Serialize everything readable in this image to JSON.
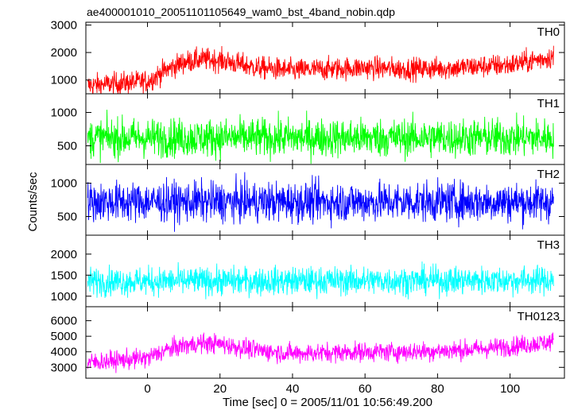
{
  "chart_data": {
    "type": "line",
    "title": "ae400001010_20051101105649_wam0_bst_4band_nobin.qdp",
    "xlabel": "Time [sec] 0 = 2005/11/01 10:56:49.200",
    "ylabel": "Counts/sec",
    "xlim": [
      -17,
      115
    ],
    "x_range": [
      -16.5,
      112
    ],
    "x_ticks": [
      0,
      20,
      40,
      60,
      80,
      100
    ],
    "grid": false,
    "panels": [
      {
        "name": "TH0",
        "color": "#ff0000",
        "ylim": [
          500,
          3100
        ],
        "y_ticks": [
          1000,
          2000,
          3000
        ],
        "noise_amplitude": 370,
        "trend": [
          [
            -16.5,
            800
          ],
          [
            0,
            950
          ],
          [
            5,
            1350
          ],
          [
            10,
            1650
          ],
          [
            15,
            1750
          ],
          [
            20,
            1720
          ],
          [
            30,
            1450
          ],
          [
            40,
            1350
          ],
          [
            50,
            1400
          ],
          [
            60,
            1450
          ],
          [
            70,
            1400
          ],
          [
            80,
            1420
          ],
          [
            90,
            1480
          ],
          [
            100,
            1550
          ],
          [
            112,
            1850
          ]
        ]
      },
      {
        "name": "TH1",
        "color": "#00ff00",
        "ylim": [
          220,
          1280
        ],
        "y_ticks": [
          500,
          1000
        ],
        "noise_amplitude": 260,
        "trend": [
          [
            -16.5,
            620
          ],
          [
            112,
            620
          ]
        ]
      },
      {
        "name": "TH2",
        "color": "#0000ff",
        "ylim": [
          220,
          1280
        ],
        "y_ticks": [
          500,
          1000
        ],
        "noise_amplitude": 270,
        "trend": [
          [
            -16.5,
            720
          ],
          [
            112,
            720
          ]
        ]
      },
      {
        "name": "TH3",
        "color": "#00ffff",
        "ylim": [
          750,
          2450
        ],
        "y_ticks": [
          1000,
          1500,
          2000
        ],
        "noise_amplitude": 300,
        "trend": [
          [
            -16.5,
            1350
          ],
          [
            112,
            1380
          ]
        ]
      },
      {
        "name": "TH0123",
        "color": "#ff00ff",
        "ylim": [
          2300,
          6900
        ],
        "y_ticks": [
          3000,
          4000,
          5000,
          6000
        ],
        "noise_amplitude": 560,
        "trend": [
          [
            -16.5,
            3300
          ],
          [
            0,
            3600
          ],
          [
            5,
            4100
          ],
          [
            10,
            4400
          ],
          [
            15,
            4550
          ],
          [
            20,
            4500
          ],
          [
            30,
            4100
          ],
          [
            40,
            3900
          ],
          [
            50,
            3950
          ],
          [
            60,
            4000
          ],
          [
            70,
            4000
          ],
          [
            80,
            4050
          ],
          [
            90,
            4150
          ],
          [
            100,
            4350
          ],
          [
            112,
            4650
          ]
        ]
      }
    ]
  }
}
